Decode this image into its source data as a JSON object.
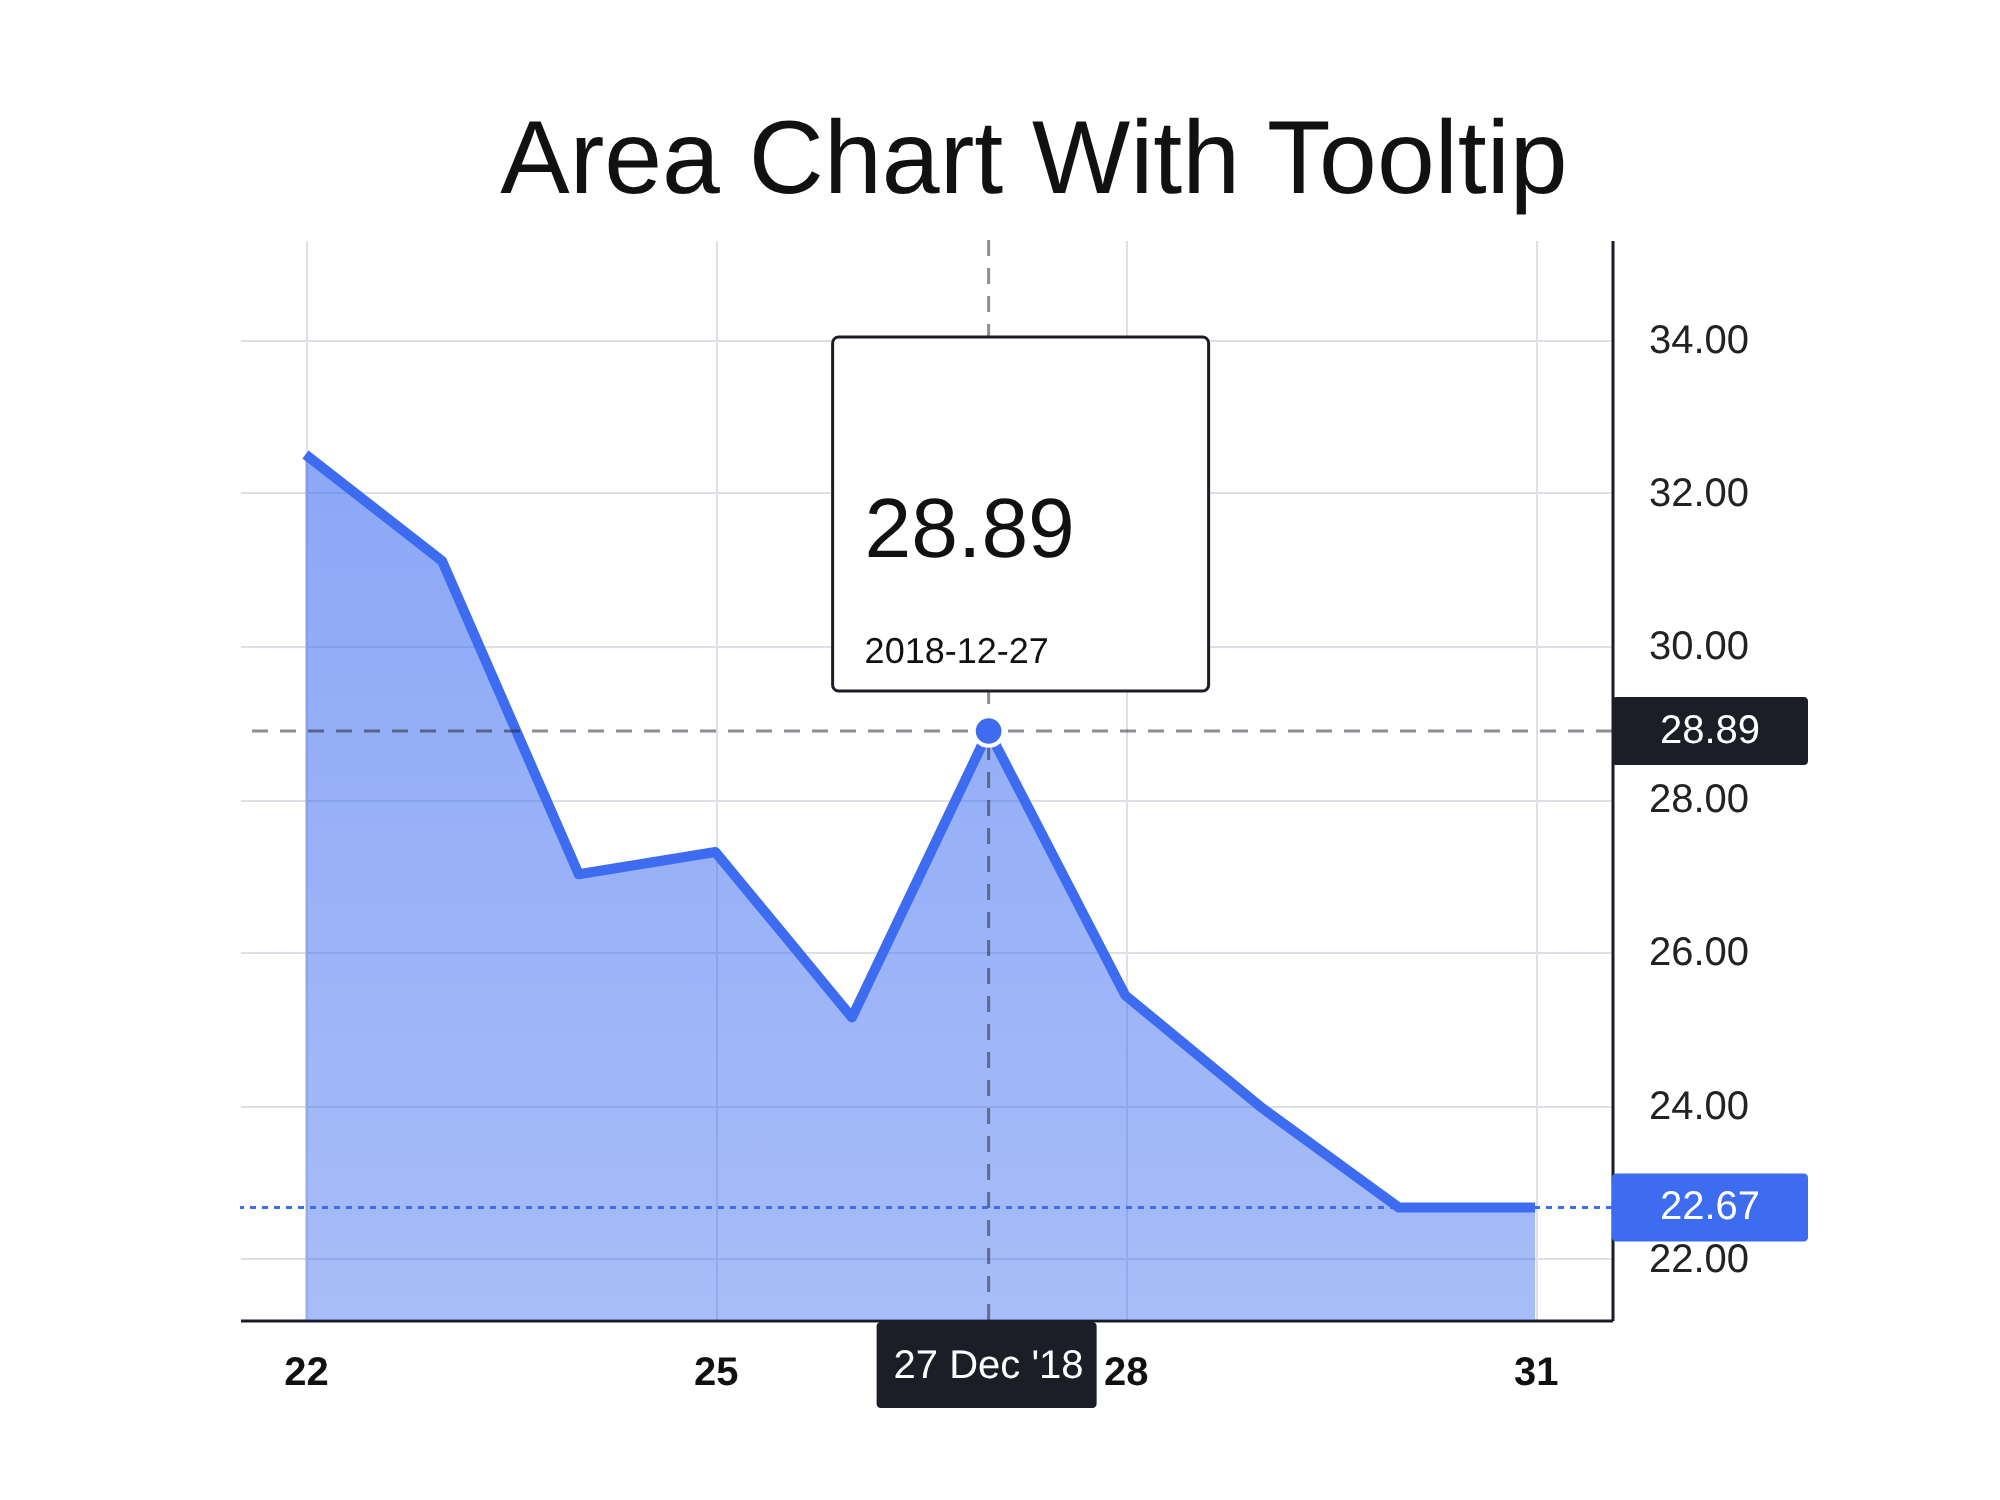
{
  "chart_data": {
    "type": "area",
    "title": "Area Chart With Tooltip",
    "x": [
      "2018-12-22",
      "2018-12-23",
      "2018-12-24",
      "2018-12-25",
      "2018-12-26",
      "2018-12-27",
      "2018-12-28",
      "2018-12-29",
      "2018-12-30",
      "2018-12-31"
    ],
    "series": [
      {
        "color": "#3d6cf0",
        "values": [
          32.5,
          31.11,
          27.02,
          27.31,
          25.15,
          28.89,
          25.44,
          23.97,
          22.67,
          22.67
        ]
      }
    ],
    "xlim": [
      "2018-12-21T12:30",
      "2018-12-31T13:30"
    ],
    "xticks": [
      {
        "value": "2018-12-22",
        "label": "22"
      },
      {
        "value": "2018-12-25",
        "label": "25"
      },
      {
        "value": "2018-12-28",
        "label": "28"
      },
      {
        "value": "2018-12-31",
        "label": "31"
      }
    ],
    "ylim": [
      21.2,
      35.3
    ],
    "yticks": [
      {
        "value": 22,
        "label": "22.00"
      },
      {
        "value": 24,
        "label": "24.00"
      },
      {
        "value": 26,
        "label": "26.00"
      },
      {
        "value": 28,
        "label": "28.00"
      },
      {
        "value": 30,
        "label": "30.00"
      },
      {
        "value": 32,
        "label": "32.00"
      },
      {
        "value": 34,
        "label": "34.00"
      }
    ],
    "grid": true,
    "ref_lines": [
      {
        "axis": "y",
        "value": 28.89,
        "label": "28.89",
        "color": "#1b1e27",
        "line_style": "dashed"
      },
      {
        "axis": "x",
        "value": "2018-12-27",
        "label": "27 Dec '18",
        "color": "#1b1e27",
        "line_style": "dashed"
      },
      {
        "axis": "y",
        "value": 22.67,
        "label": "22.67",
        "color": "#3d6cf0",
        "line_style": "dotted"
      }
    ],
    "annotations": [
      {
        "text": "28.89",
        "x": "2018-12-27",
        "y": 28.89
      },
      {
        "text": "2018-12-27",
        "x": "2018-12-27",
        "y": 28.89
      }
    ]
  }
}
